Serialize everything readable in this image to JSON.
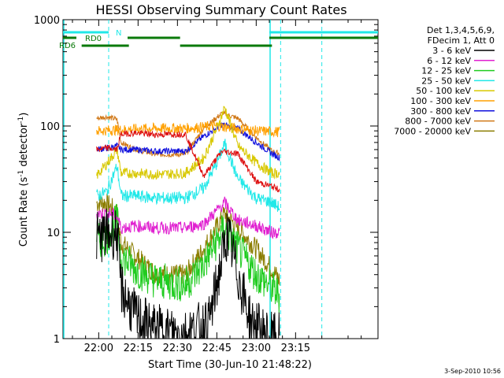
{
  "chart_data": {
    "type": "line",
    "title": "HESSI Observing Summary Count Rates",
    "xlabel": "Start Time (30-Jun-10 21:48:22)",
    "ylabel_main": "Count Rate (s",
    "ylabel_sup1": "-1",
    "ylabel_mid": " detector",
    "ylabel_sup2": "-1",
    "ylabel_end": ")",
    "y_scale": "log",
    "ylim": [
      1,
      1000
    ],
    "xlim_minutes": [
      -13.6,
      106.4
    ],
    "x_ticks": [
      {
        "label": "22:00",
        "minutes": 0
      },
      {
        "label": "22:15",
        "minutes": 15
      },
      {
        "label": "22:30",
        "minutes": 30
      },
      {
        "label": "22:45",
        "minutes": 45
      },
      {
        "label": "23:00",
        "minutes": 60
      },
      {
        "label": "23:15",
        "minutes": 75
      }
    ],
    "y_ticks": [
      {
        "label": "1",
        "value": 1
      },
      {
        "label": "10",
        "value": 10
      },
      {
        "label": "100",
        "value": 100
      },
      {
        "label": "1000",
        "value": 1000
      }
    ],
    "legend_header": [
      "Det 1,3,4,5,6,9,",
      "FDecim 1, Att 0"
    ],
    "legend_position": "right",
    "series": [
      {
        "name": "3 - 6 keV",
        "color": "#000000",
        "base": 8.8,
        "peak": 10.5,
        "noise": 0.5,
        "points": [
          [
            -0.8,
            9
          ],
          [
            3,
            9.5
          ],
          [
            7,
            10
          ],
          [
            8.5,
            3
          ],
          [
            14,
            1.6
          ],
          [
            22,
            1.2
          ],
          [
            33,
            1.1
          ],
          [
            42,
            1.4
          ],
          [
            49,
            10
          ],
          [
            53,
            4
          ],
          [
            58,
            1.4
          ],
          [
            66,
            1
          ],
          [
            69,
            1
          ]
        ]
      },
      {
        "name": "6 - 12 keV",
        "color": "#e020d0",
        "base": 15,
        "noise": 0.12,
        "points": [
          [
            -0.8,
            15
          ],
          [
            5,
            15
          ],
          [
            7,
            14
          ],
          [
            8.5,
            11
          ],
          [
            14,
            11.5
          ],
          [
            22,
            11
          ],
          [
            33,
            11
          ],
          [
            40,
            12
          ],
          [
            48,
            19
          ],
          [
            53,
            13
          ],
          [
            60,
            11.5
          ],
          [
            66,
            10
          ],
          [
            69,
            10
          ]
        ]
      },
      {
        "name": "12 - 25 keV",
        "color": "#20cc20",
        "base": 9,
        "noise": 0.35,
        "points": [
          [
            -0.8,
            8
          ],
          [
            3,
            9
          ],
          [
            7,
            13
          ],
          [
            8.5,
            6
          ],
          [
            14,
            4.5
          ],
          [
            22,
            3.5
          ],
          [
            33,
            3.2
          ],
          [
            40,
            5
          ],
          [
            48,
            11
          ],
          [
            53,
            7
          ],
          [
            60,
            4
          ],
          [
            66,
            3
          ],
          [
            69,
            2.5
          ]
        ]
      },
      {
        "name": "25 - 50 keV",
        "color": "#20e8e8",
        "base": 22,
        "noise": 0.12,
        "points": [
          [
            -0.8,
            22
          ],
          [
            3,
            24
          ],
          [
            7,
            42
          ],
          [
            8.5,
            22
          ],
          [
            14,
            22
          ],
          [
            22,
            21
          ],
          [
            33,
            21
          ],
          [
            40,
            26
          ],
          [
            45,
            45
          ],
          [
            48,
            68
          ],
          [
            53,
            32
          ],
          [
            60,
            21
          ],
          [
            66,
            19
          ],
          [
            69,
            17
          ]
        ]
      },
      {
        "name": "50 - 100 keV",
        "color": "#d8c800",
        "base": 37,
        "noise": 0.1,
        "points": [
          [
            -0.8,
            34
          ],
          [
            3,
            44
          ],
          [
            7,
            60
          ],
          [
            8.5,
            36
          ],
          [
            14,
            36
          ],
          [
            22,
            35
          ],
          [
            33,
            36
          ],
          [
            40,
            50
          ],
          [
            45,
            95
          ],
          [
            48,
            150
          ],
          [
            53,
            65
          ],
          [
            60,
            45
          ],
          [
            66,
            36
          ],
          [
            69,
            36
          ]
        ]
      },
      {
        "name": "100 - 300 keV",
        "color": "#ffa000",
        "base": 40,
        "noise": 0.1,
        "points": [
          [
            -0.8,
            90
          ],
          [
            20,
            95
          ],
          [
            33,
            95
          ],
          [
            45,
            100
          ],
          [
            60,
            90
          ],
          [
            69,
            88
          ]
        ]
      },
      {
        "name": "300 - 800 keV",
        "color": "#1010dd",
        "base": 55,
        "noise": 0.06,
        "points": [
          [
            -0.8,
            60
          ],
          [
            3,
            62
          ],
          [
            7,
            65
          ],
          [
            8.5,
            60
          ],
          [
            14,
            60
          ],
          [
            22,
            58
          ],
          [
            33,
            58
          ],
          [
            40,
            80
          ],
          [
            47,
            103
          ],
          [
            53,
            95
          ],
          [
            60,
            70
          ],
          [
            66,
            55
          ],
          [
            69,
            50
          ]
        ]
      },
      {
        "name": "800 - 7000 keV",
        "color": "#d07818",
        "base": 55,
        "noise": 0.05,
        "points": [
          [
            -0.8,
            118
          ],
          [
            3,
            122
          ],
          [
            7,
            115
          ],
          [
            8.5,
            70
          ],
          [
            14,
            60
          ],
          [
            22,
            54
          ],
          [
            33,
            54
          ],
          [
            40,
            95
          ],
          [
            47,
            132
          ],
          [
            53,
            118
          ],
          [
            60,
            78
          ],
          [
            66,
            58
          ],
          [
            69,
            55
          ]
        ]
      },
      {
        "name": "7000 - 20000 keV",
        "color": "#8b7d00",
        "base": 5,
        "noise": 0.2,
        "points": [
          [
            -0.8,
            19
          ],
          [
            3,
            19
          ],
          [
            7,
            15
          ],
          [
            8.5,
            8
          ],
          [
            14,
            6
          ],
          [
            22,
            4
          ],
          [
            33,
            4
          ],
          [
            40,
            7
          ],
          [
            48,
            15
          ],
          [
            53,
            11
          ],
          [
            60,
            7
          ],
          [
            66,
            4.5
          ],
          [
            69,
            3.5
          ]
        ]
      }
    ],
    "extra_red_series": {
      "color": "#dd1010",
      "points": [
        [
          -0.8,
          60
        ],
        [
          3,
          62
        ],
        [
          7,
          60
        ],
        [
          8.5,
          84
        ],
        [
          14,
          86
        ],
        [
          22,
          83
        ],
        [
          33,
          84
        ],
        [
          40,
          34
        ],
        [
          47,
          58
        ],
        [
          53,
          55
        ],
        [
          60,
          30
        ],
        [
          66,
          27
        ],
        [
          69,
          25
        ]
      ]
    },
    "markers": {
      "N_label": "N",
      "RD0_label": "RD0",
      "RD6_label": "RD6",
      "cyan_vlines_minutes": [
        3.8,
        69.3,
        85.0
      ],
      "cyan_solid_vlines_minutes": [
        -13.6,
        65.0
      ],
      "N_bar": [
        [
          -13.6,
          3.8
        ],
        [
          65.0,
          106.4
        ]
      ],
      "RD0_bars": [
        [
          -13.6,
          -8.5
        ],
        [
          11,
          31
        ],
        [
          65,
          106.4
        ]
      ],
      "RD6_bars": [
        [
          -6.5,
          11.5
        ],
        [
          31,
          66
        ]
      ]
    }
  },
  "timestamp": "3-Sep-2010 10:56"
}
